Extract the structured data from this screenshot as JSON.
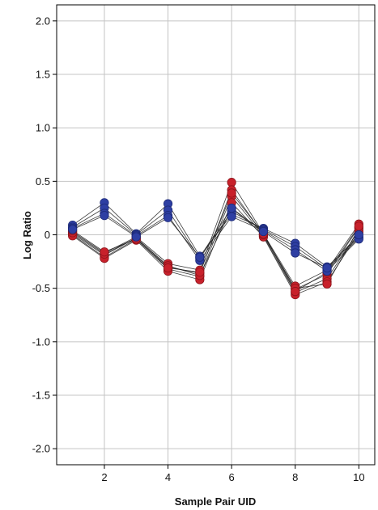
{
  "chart_data": {
    "type": "line",
    "title": "",
    "xlabel": "Sample Pair UID",
    "ylabel": "Log Ratio",
    "xlim": [
      0.5,
      10.5
    ],
    "ylim": [
      -2.15,
      2.15
    ],
    "x_ticks": [
      2,
      4,
      6,
      8,
      10
    ],
    "x_tick_labels": [
      "2",
      "4",
      "6",
      "8",
      "10"
    ],
    "y_ticks": [
      2.0,
      1.5,
      1.0,
      0.5,
      0,
      -0.5,
      -1.0,
      -1.5,
      -2.0
    ],
    "y_tick_labels": [
      "2.0",
      "1.5",
      "1.0",
      "0.5",
      "0",
      "-0.5",
      "-1.0",
      "-1.5",
      "-2.0"
    ],
    "grid": true,
    "legend": "none",
    "x": [
      1,
      2,
      3,
      4,
      5,
      6,
      7,
      8,
      9,
      10
    ],
    "series_colors": {
      "blue": "#2e3fa3",
      "red": "#c8212b",
      "line": "#1a1a1a"
    },
    "series": [
      {
        "color": "blue",
        "values": [
          0.09,
          0.3,
          0.01,
          0.29,
          -0.2,
          0.19,
          0.06,
          -0.08,
          -0.3,
          -0.02
        ]
      },
      {
        "color": "blue",
        "values": [
          0.07,
          0.25,
          0.0,
          0.23,
          -0.22,
          0.22,
          0.05,
          -0.11,
          -0.32,
          -0.03
        ]
      },
      {
        "color": "blue",
        "values": [
          0.06,
          0.2,
          -0.01,
          0.18,
          -0.24,
          0.17,
          0.04,
          -0.14,
          -0.34,
          -0.04
        ]
      },
      {
        "color": "blue",
        "values": [
          0.05,
          0.18,
          -0.02,
          0.16,
          -0.21,
          0.25,
          0.03,
          -0.17,
          -0.31,
          0.0
        ]
      },
      {
        "color": "red",
        "values": [
          0.03,
          -0.17,
          -0.02,
          -0.27,
          -0.33,
          0.49,
          0.01,
          -0.48,
          -0.33,
          0.1
        ]
      },
      {
        "color": "red",
        "values": [
          0.01,
          -0.19,
          -0.03,
          -0.3,
          -0.36,
          0.42,
          0.0,
          -0.51,
          -0.37,
          0.07
        ]
      },
      {
        "color": "red",
        "values": [
          0.0,
          -0.21,
          -0.04,
          -0.32,
          -0.39,
          0.36,
          -0.01,
          -0.54,
          -0.41,
          0.04
        ]
      },
      {
        "color": "red",
        "values": [
          -0.01,
          -0.22,
          -0.05,
          -0.34,
          -0.42,
          0.3,
          -0.02,
          -0.56,
          -0.44,
          0.02
        ]
      },
      {
        "color": "red",
        "values": [
          0.02,
          -0.18,
          -0.03,
          -0.29,
          -0.38,
          0.25,
          0.0,
          -0.5,
          -0.46,
          0.06
        ]
      },
      {
        "color": "red",
        "values": [
          0.04,
          -0.16,
          -0.04,
          -0.31,
          -0.35,
          0.39,
          0.01,
          -0.53,
          -0.35,
          0.08
        ]
      }
    ]
  }
}
